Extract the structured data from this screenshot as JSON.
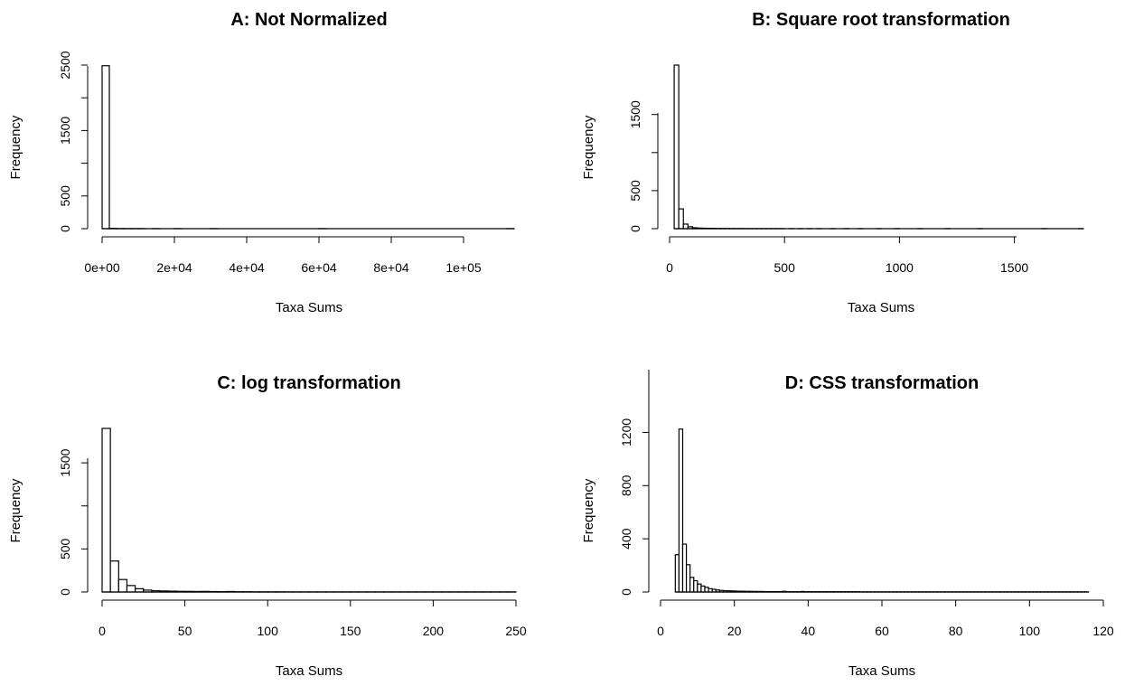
{
  "chart_data": [
    {
      "id": "A",
      "type": "bar",
      "title": "A: Not Normalized",
      "xlabel": "Taxa Sums",
      "ylabel": "Frequency",
      "xlim": [
        0,
        115000
      ],
      "ylim": [
        0,
        2500
      ],
      "xticks": [
        0,
        20000,
        40000,
        60000,
        80000,
        100000
      ],
      "xtick_labels": [
        "0e+00",
        "2e+04",
        "4e+04",
        "6e+04",
        "8e+04",
        "1e+05"
      ],
      "yticks": [
        0,
        500,
        1000,
        1500,
        2000,
        2500
      ],
      "ytick_labels": [
        "0",
        "500",
        "",
        "1500",
        "",
        "2500"
      ],
      "bin_width": 2000,
      "bin_start": 0,
      "values": [
        2490,
        4,
        2,
        1,
        1,
        1,
        0,
        1,
        0,
        0,
        1,
        0,
        0,
        0,
        0,
        1,
        0,
        0,
        0,
        0,
        0,
        0,
        0,
        0,
        0,
        0,
        0,
        0,
        0,
        0,
        1,
        0,
        0,
        0,
        0,
        0,
        0,
        0,
        0,
        0,
        0,
        0,
        0,
        0,
        0,
        0,
        0,
        0,
        0,
        0,
        0,
        0,
        0,
        0,
        0,
        0,
        1
      ]
    },
    {
      "id": "B",
      "type": "bar",
      "title": "B: Square root transformation",
      "xlabel": "Taxa Sums",
      "ylabel": "Frequency",
      "xlim": [
        0,
        1820
      ],
      "ylim": [
        0,
        2150
      ],
      "xticks": [
        0,
        500,
        1000,
        1500
      ],
      "xtick_labels": [
        "0",
        "500",
        "1000",
        "1500"
      ],
      "yticks": [
        0,
        500,
        1000,
        1500
      ],
      "ytick_labels": [
        "0",
        "500",
        "",
        "1500"
      ],
      "bin_width": 20,
      "bin_start": 20,
      "values": [
        2150,
        260,
        60,
        25,
        12,
        8,
        6,
        5,
        4,
        3,
        3,
        2,
        2,
        2,
        2,
        1,
        1,
        1,
        1,
        1,
        1,
        1,
        1,
        1,
        0,
        1,
        0,
        1,
        0,
        1,
        0,
        1,
        0,
        0,
        1,
        0,
        0,
        1,
        0,
        0,
        1,
        0,
        0,
        0,
        1,
        0,
        0,
        0,
        1,
        0,
        0,
        0,
        0,
        1,
        0,
        0,
        0,
        0,
        0,
        1,
        0,
        0,
        0,
        0,
        0,
        0,
        1,
        0,
        0,
        0,
        0,
        0,
        0,
        0,
        0,
        0,
        0,
        0,
        0,
        0,
        1,
        0,
        0,
        0,
        0,
        0,
        0,
        0,
        1
      ]
    },
    {
      "id": "C",
      "type": "bar",
      "title": "C: log transformation",
      "xlabel": "Taxa Sums",
      "ylabel": "Frequency",
      "xlim": [
        0,
        250
      ],
      "ylim": [
        0,
        1900
      ],
      "xticks": [
        0,
        50,
        100,
        150,
        200,
        250
      ],
      "xtick_labels": [
        "0",
        "50",
        "100",
        "150",
        "200",
        "250"
      ],
      "yticks": [
        0,
        500,
        1000,
        1500
      ],
      "ytick_labels": [
        "0",
        "500",
        "",
        "1500"
      ],
      "bin_width": 5,
      "bin_start": 0,
      "values": [
        1900,
        360,
        145,
        75,
        38,
        22,
        15,
        12,
        10,
        8,
        7,
        6,
        7,
        5,
        4,
        6,
        3,
        3,
        2,
        2,
        2,
        2,
        1,
        1,
        1,
        1,
        1,
        1,
        1,
        1,
        1,
        1,
        1,
        1,
        1,
        1,
        1,
        1,
        1,
        1,
        1,
        1,
        1,
        1,
        1,
        1,
        1,
        1,
        1,
        1
      ]
    },
    {
      "id": "D",
      "type": "bar",
      "title": "D: CSS transformation",
      "xlabel": "Taxa Sums",
      "ylabel": "Frequency",
      "xlim": [
        0,
        120
      ],
      "ylim": [
        0,
        1230
      ],
      "xticks": [
        0,
        20,
        40,
        60,
        80,
        100,
        120
      ],
      "xtick_labels": [
        "0",
        "20",
        "40",
        "60",
        "80",
        "100",
        "120"
      ],
      "yticks": [
        0,
        400,
        800,
        1200
      ],
      "ytick_labels": [
        "0",
        "400",
        "800",
        "1200"
      ],
      "bin_width": 1,
      "bin_start": 4,
      "values": [
        280,
        1225,
        360,
        205,
        110,
        85,
        60,
        45,
        35,
        25,
        20,
        15,
        12,
        10,
        9,
        8,
        7,
        6,
        6,
        5,
        5,
        4,
        4,
        4,
        3,
        3,
        3,
        3,
        3,
        5,
        2,
        2,
        2,
        2,
        4,
        2,
        2,
        2,
        2,
        2,
        2,
        2,
        2,
        2,
        2,
        2,
        2,
        2,
        2,
        2,
        1,
        1,
        1,
        1,
        1,
        1,
        1,
        1,
        1,
        1,
        1,
        1,
        1,
        1,
        1,
        1,
        1,
        1,
        1,
        1,
        1,
        1,
        1,
        1,
        1,
        1,
        1,
        1,
        1,
        1,
        1,
        1,
        1,
        1,
        1,
        1,
        1,
        1,
        1,
        1,
        1,
        1,
        1,
        1,
        1,
        1,
        1,
        1,
        1,
        1,
        1,
        1,
        1,
        1,
        1,
        1,
        1,
        1,
        1,
        1,
        1,
        1
      ]
    }
  ]
}
